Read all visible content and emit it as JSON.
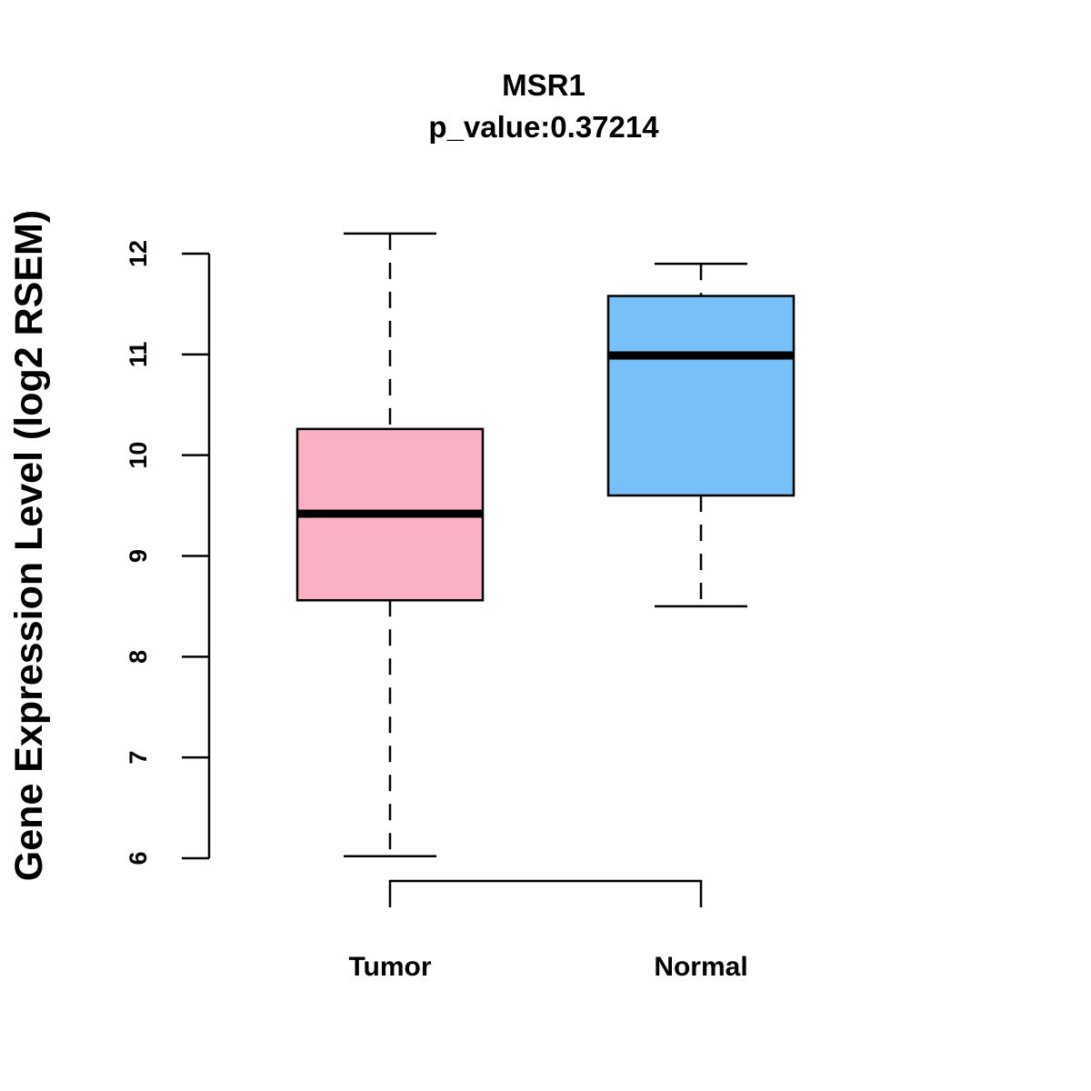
{
  "chart_data": {
    "type": "boxplot",
    "title": "MSR1",
    "subtitle": "p_value:0.37214",
    "xlabel": "",
    "ylabel": "Gene Expression Level (log2 RSEM)",
    "ylim": [
      6,
      12
    ],
    "yticks": [
      "6",
      "7",
      "8",
      "9",
      "10",
      "11",
      "12"
    ],
    "grid": false,
    "categories": [
      "Tumor",
      "Normal"
    ],
    "boxes": [
      {
        "name": "Tumor",
        "whisker_low": 6.02,
        "q1": 8.56,
        "median": 9.42,
        "q3": 10.26,
        "whisker_high": 12.2,
        "color": "#FBB1C4"
      },
      {
        "name": "Normal",
        "whisker_low": 8.5,
        "q1": 9.6,
        "median": 10.99,
        "q3": 11.58,
        "whisker_high": 11.9,
        "color": "#77C0F8"
      }
    ],
    "comparison_bracket": [
      "Tumor",
      "Normal"
    ]
  }
}
